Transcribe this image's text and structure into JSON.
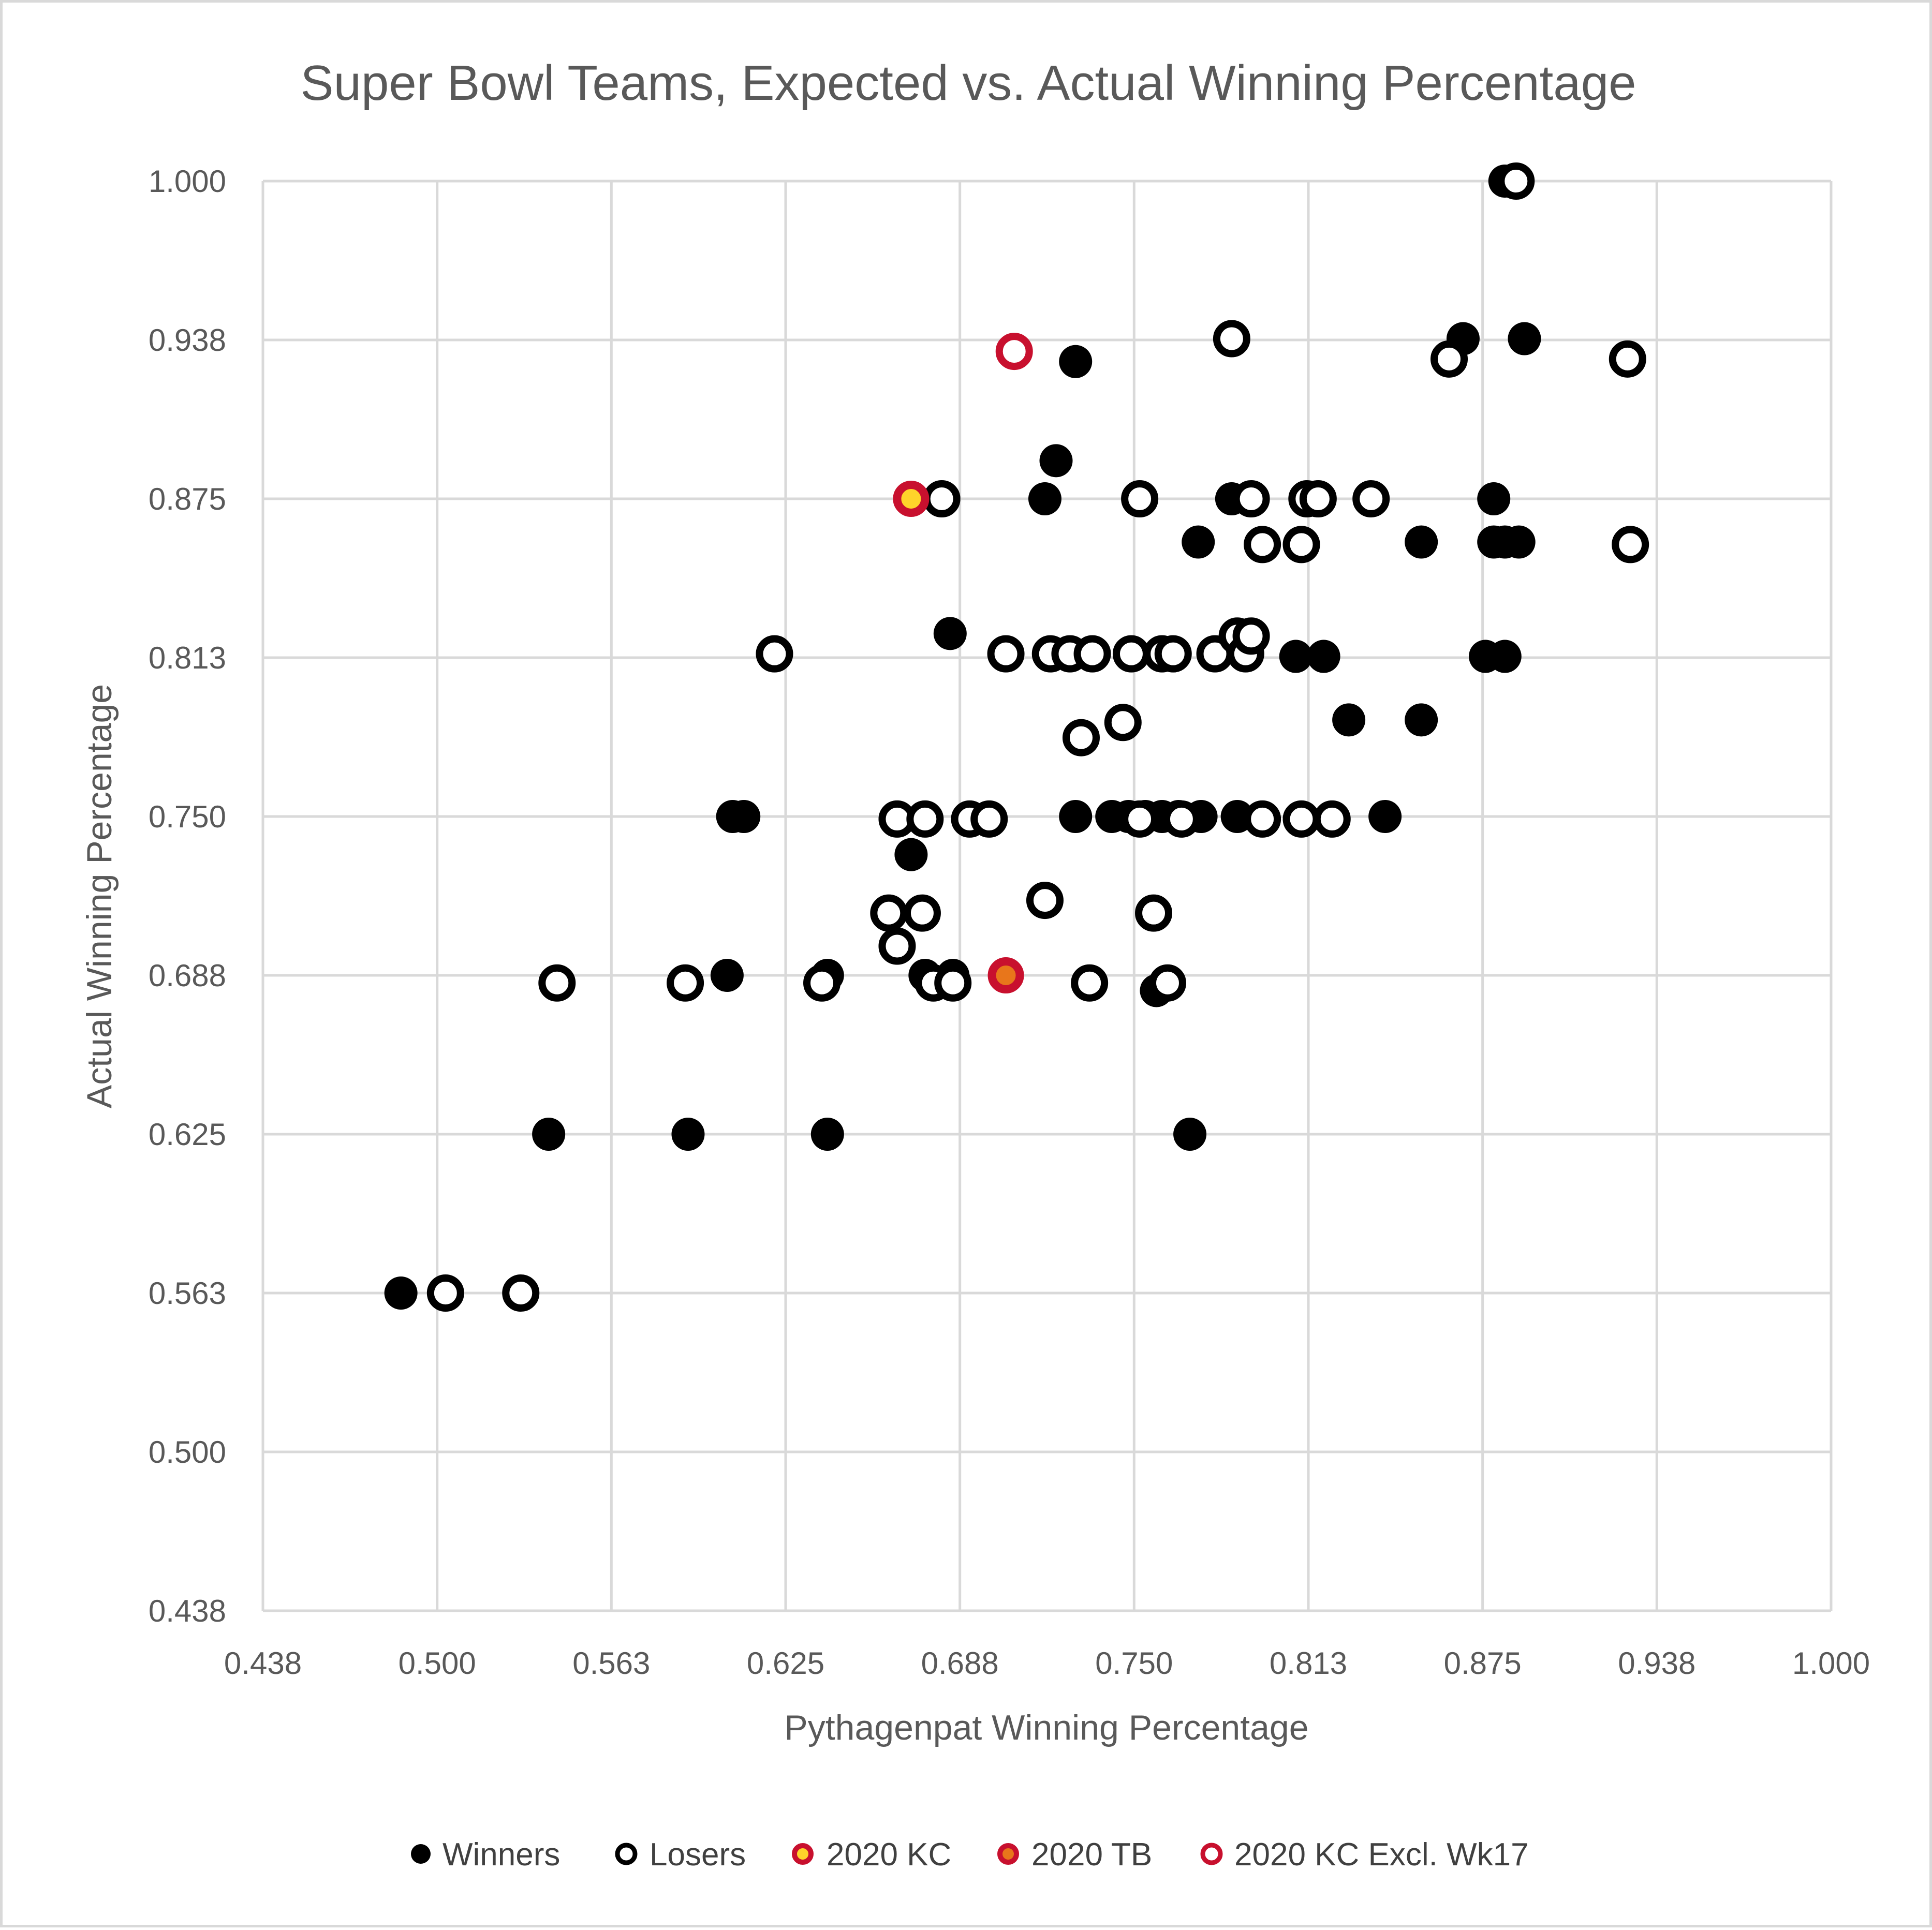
{
  "chart_data": {
    "type": "scatter",
    "title": "Super Bowl Teams, Expected vs. Actual Winning Percentage",
    "xlabel": "Pythagenpat Winning Percentage",
    "ylabel": "Actual Winning Percentage",
    "xlim": [
      0.4375,
      1.0
    ],
    "ylim": [
      0.4375,
      1.0
    ],
    "x_ticks": [
      "0.438",
      "0.500",
      "0.563",
      "0.625",
      "0.688",
      "0.750",
      "0.813",
      "0.875",
      "0.938",
      "1.000"
    ],
    "y_ticks": [
      "0.438",
      "0.500",
      "0.563",
      "0.625",
      "0.688",
      "0.750",
      "0.813",
      "0.875",
      "0.938",
      "1.000"
    ],
    "grid": true,
    "legend_position": "bottom",
    "series": [
      {
        "name": "Winners",
        "marker": "filled",
        "fill": "#000000",
        "stroke": "#000000",
        "points": [
          {
            "x": 0.487,
            "y": 0.5625
          },
          {
            "x": 0.54,
            "y": 0.625
          },
          {
            "x": 0.59,
            "y": 0.625
          },
          {
            "x": 0.606,
            "y": 0.75
          },
          {
            "x": 0.61,
            "y": 0.75
          },
          {
            "x": 0.604,
            "y": 0.6875
          },
          {
            "x": 0.64,
            "y": 0.6875
          },
          {
            "x": 0.64,
            "y": 0.625
          },
          {
            "x": 0.67,
            "y": 0.735
          },
          {
            "x": 0.675,
            "y": 0.6875
          },
          {
            "x": 0.685,
            "y": 0.6875
          },
          {
            "x": 0.684,
            "y": 0.822
          },
          {
            "x": 0.718,
            "y": 0.875
          },
          {
            "x": 0.722,
            "y": 0.89
          },
          {
            "x": 0.729,
            "y": 0.929
          },
          {
            "x": 0.729,
            "y": 0.75
          },
          {
            "x": 0.742,
            "y": 0.75
          },
          {
            "x": 0.748,
            "y": 0.75
          },
          {
            "x": 0.754,
            "y": 0.75
          },
          {
            "x": 0.76,
            "y": 0.75
          },
          {
            "x": 0.766,
            "y": 0.75
          },
          {
            "x": 0.774,
            "y": 0.75
          },
          {
            "x": 0.787,
            "y": 0.75
          },
          {
            "x": 0.758,
            "y": 0.6815
          },
          {
            "x": 0.77,
            "y": 0.625
          },
          {
            "x": 0.773,
            "y": 0.858
          },
          {
            "x": 0.785,
            "y": 0.875
          },
          {
            "x": 0.808,
            "y": 0.813
          },
          {
            "x": 0.818,
            "y": 0.813
          },
          {
            "x": 0.827,
            "y": 0.788
          },
          {
            "x": 0.84,
            "y": 0.75
          },
          {
            "x": 0.853,
            "y": 0.858
          },
          {
            "x": 0.853,
            "y": 0.788
          },
          {
            "x": 0.868,
            "y": 0.938
          },
          {
            "x": 0.876,
            "y": 0.813
          },
          {
            "x": 0.883,
            "y": 0.813
          },
          {
            "x": 0.879,
            "y": 0.875
          },
          {
            "x": 0.879,
            "y": 0.858
          },
          {
            "x": 0.883,
            "y": 0.858
          },
          {
            "x": 0.888,
            "y": 0.858
          },
          {
            "x": 0.883,
            "y": 1.0
          },
          {
            "x": 0.89,
            "y": 0.938
          }
        ]
      },
      {
        "name": "Losers",
        "marker": "hollow",
        "fill": "#ffffff",
        "stroke": "#000000",
        "points": [
          {
            "x": 0.503,
            "y": 0.5625
          },
          {
            "x": 0.53,
            "y": 0.5625
          },
          {
            "x": 0.543,
            "y": 0.6845
          },
          {
            "x": 0.589,
            "y": 0.6845
          },
          {
            "x": 0.621,
            "y": 0.814
          },
          {
            "x": 0.638,
            "y": 0.6845
          },
          {
            "x": 0.662,
            "y": 0.712
          },
          {
            "x": 0.665,
            "y": 0.699
          },
          {
            "x": 0.665,
            "y": 0.749
          },
          {
            "x": 0.675,
            "y": 0.749
          },
          {
            "x": 0.674,
            "y": 0.712
          },
          {
            "x": 0.678,
            "y": 0.6845
          },
          {
            "x": 0.685,
            "y": 0.6845
          },
          {
            "x": 0.681,
            "y": 0.875
          },
          {
            "x": 0.691,
            "y": 0.749
          },
          {
            "x": 0.698,
            "y": 0.749
          },
          {
            "x": 0.704,
            "y": 0.814
          },
          {
            "x": 0.72,
            "y": 0.814
          },
          {
            "x": 0.718,
            "y": 0.717
          },
          {
            "x": 0.727,
            "y": 0.814
          },
          {
            "x": 0.731,
            "y": 0.781
          },
          {
            "x": 0.735,
            "y": 0.814
          },
          {
            "x": 0.734,
            "y": 0.6845
          },
          {
            "x": 0.746,
            "y": 0.787
          },
          {
            "x": 0.749,
            "y": 0.814
          },
          {
            "x": 0.752,
            "y": 0.749
          },
          {
            "x": 0.752,
            "y": 0.875
          },
          {
            "x": 0.757,
            "y": 0.712
          },
          {
            "x": 0.76,
            "y": 0.814
          },
          {
            "x": 0.764,
            "y": 0.814
          },
          {
            "x": 0.762,
            "y": 0.6845
          },
          {
            "x": 0.767,
            "y": 0.749
          },
          {
            "x": 0.779,
            "y": 0.814
          },
          {
            "x": 0.785,
            "y": 0.938
          },
          {
            "x": 0.787,
            "y": 0.821
          },
          {
            "x": 0.79,
            "y": 0.814
          },
          {
            "x": 0.792,
            "y": 0.821
          },
          {
            "x": 0.792,
            "y": 0.875
          },
          {
            "x": 0.796,
            "y": 0.857
          },
          {
            "x": 0.796,
            "y": 0.749
          },
          {
            "x": 0.81,
            "y": 0.749
          },
          {
            "x": 0.81,
            "y": 0.857
          },
          {
            "x": 0.812,
            "y": 0.875
          },
          {
            "x": 0.816,
            "y": 0.875
          },
          {
            "x": 0.821,
            "y": 0.749
          },
          {
            "x": 0.835,
            "y": 0.875
          },
          {
            "x": 0.863,
            "y": 0.93
          },
          {
            "x": 0.887,
            "y": 1.0
          },
          {
            "x": 0.927,
            "y": 0.93
          },
          {
            "x": 0.928,
            "y": 0.857
          }
        ]
      },
      {
        "name": "2020 KC",
        "marker": "filled-ring",
        "fill": "#ffd42a",
        "stroke": "#c8102e",
        "points": [
          {
            "x": 0.67,
            "y": 0.875
          }
        ]
      },
      {
        "name": "2020 TB",
        "marker": "filled-ring",
        "fill": "#e8761b",
        "stroke": "#c8102e",
        "points": [
          {
            "x": 0.704,
            "y": 0.6875
          }
        ]
      },
      {
        "name": "2020 KC Excl. Wk17",
        "marker": "hollow",
        "fill": "#ffffff",
        "stroke": "#c8102e",
        "points": [
          {
            "x": 0.707,
            "y": 0.933
          }
        ]
      }
    ]
  }
}
